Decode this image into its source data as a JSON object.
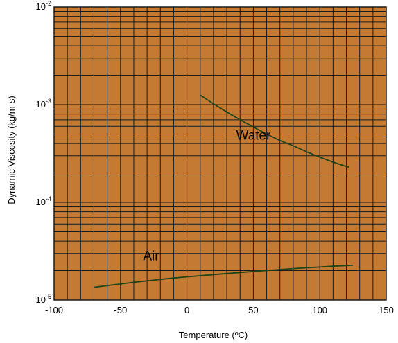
{
  "chart_data": {
    "type": "line",
    "title": "",
    "xlabel": "Temperature (ºC)",
    "ylabel": "Dynamic Viscosity (kg/m-s)",
    "xlim": [
      -100,
      150
    ],
    "ylim": [
      1e-05,
      0.01
    ],
    "yscale": "log",
    "grid": true,
    "x_ticks": [
      -100,
      -50,
      0,
      50,
      100,
      150
    ],
    "x_tick_labels": [
      "-100",
      "-50",
      "0",
      "50",
      "100",
      "150"
    ],
    "y_ticks": [
      {
        "value": 0.01,
        "base": "10",
        "exp": "-2"
      },
      {
        "value": 0.001,
        "base": "10",
        "exp": "-3"
      },
      {
        "value": 0.0001,
        "base": "10",
        "exp": "-4"
      },
      {
        "value": 1e-05,
        "base": "10",
        "exp": "-5"
      }
    ],
    "series": [
      {
        "name": "Water",
        "x": [
          10,
          20,
          30,
          40,
          50,
          60,
          70,
          80,
          90,
          100,
          110,
          122
        ],
        "y": [
          0.00125,
          0.00102,
          0.00084,
          0.0007,
          0.00059,
          0.0005,
          0.00043,
          0.00038,
          0.00033,
          0.00029,
          0.000258,
          0.000228
        ]
      },
      {
        "name": "Air",
        "x": [
          -70,
          -40,
          -10,
          20,
          50,
          80,
          110,
          125
        ],
        "y": [
          1.35e-05,
          1.52e-05,
          1.68e-05,
          1.82e-05,
          1.96e-05,
          2.1e-05,
          2.22e-05,
          2.27e-05
        ]
      }
    ],
    "annotations": [
      {
        "text": "Water",
        "x": 37,
        "y": 0.00044
      },
      {
        "text": "Air",
        "x": -33,
        "y": 2.55e-05
      }
    ],
    "colors": {
      "background": "#c57a33",
      "grid": "#1a1a1a",
      "line": "#1f4419"
    }
  }
}
